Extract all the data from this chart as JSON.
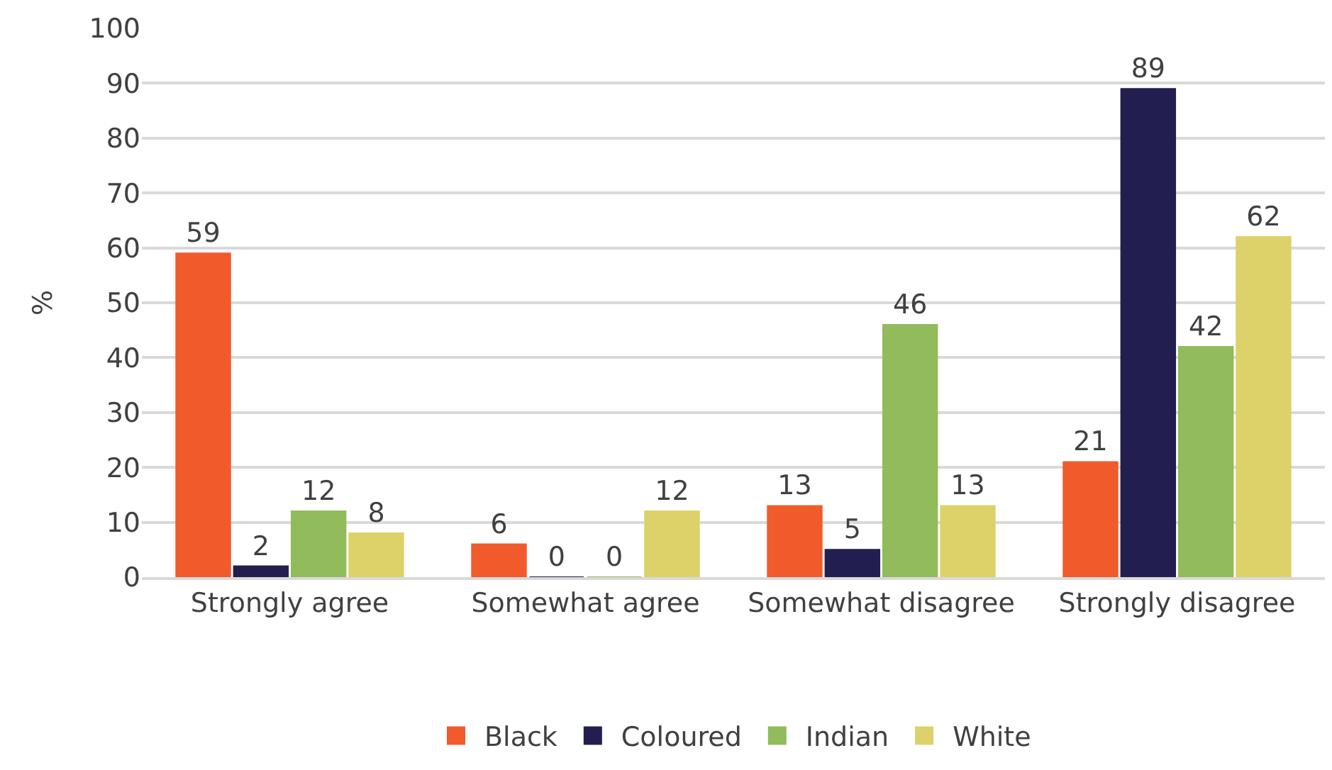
{
  "chart_data": {
    "type": "bar",
    "ylabel": "%",
    "categories": [
      "Strongly agree",
      "Somewhat agree",
      "Somewhat disagree",
      "Strongly disagree"
    ],
    "series": [
      {
        "name": "Black",
        "color": "#f15a2b",
        "values": [
          59,
          6,
          13,
          21
        ]
      },
      {
        "name": "Coloured",
        "color": "#221f50",
        "values": [
          2,
          0,
          5,
          89
        ]
      },
      {
        "name": "Indian",
        "color": "#92bb5b",
        "values": [
          12,
          0,
          46,
          42
        ]
      },
      {
        "name": "White",
        "color": "#ddd16a",
        "values": [
          8,
          12,
          13,
          62
        ]
      }
    ],
    "ylim": [
      0,
      100
    ],
    "yticks": [
      0,
      10,
      20,
      30,
      40,
      50,
      60,
      70,
      80,
      90,
      100
    ],
    "grid": "y",
    "legend": "bottom",
    "data_labels": true
  }
}
